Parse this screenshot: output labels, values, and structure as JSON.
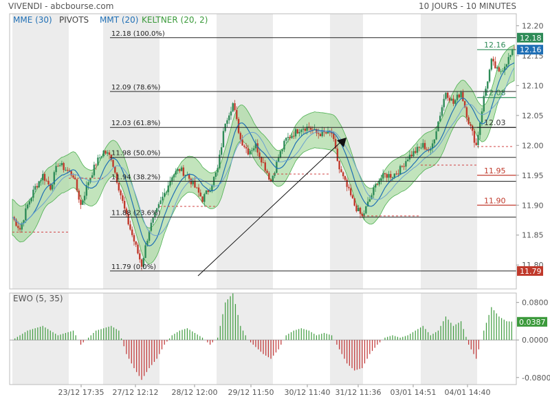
{
  "header": {
    "left": "VIVENDI - abcbourse.com",
    "right": "10 JOURS - 10 MINUTES"
  },
  "legend": [
    {
      "label": "MME (30)",
      "color": "#1f6fb5"
    },
    {
      "label": "PIVOTS",
      "color": "#444444"
    },
    {
      "label": "MMT (20)",
      "color": "#1f6fb5"
    },
    {
      "label": "KELTNER (20, 2)",
      "color": "#3a9a3a"
    }
  ],
  "ewo_label": "EWO (5, 35)",
  "colors": {
    "up_candle": "#2e8b57",
    "down_candle": "#c0392b",
    "keltner_fill": "#a8d8a0",
    "keltner_line": "#4caf50",
    "ma_line": "#1f6fb5",
    "pivot_dash": "#d04040",
    "shade": "#ececec",
    "ewo_pos": "#3c9a3c",
    "ewo_neg": "#c03030"
  },
  "chart_data": [
    {
      "type": "candlestick",
      "ylim": [
        11.76,
        12.22
      ],
      "yticks": [
        "12.20",
        "12.15",
        "12.10",
        "12.05",
        "12.00",
        "11.95",
        "11.90",
        "11.85",
        "11.80"
      ],
      "xticks": [
        "23/12 17:35",
        "27/12 12:12",
        "28/12 12:00",
        "29/12 11:50",
        "30/12 11:40",
        "31/12 11:36",
        "03/01 14:51",
        "04/01 14:40"
      ],
      "fibonacci": [
        {
          "price": 12.18,
          "label": "12.18",
          "pct": "(100.0%)"
        },
        {
          "price": 12.09,
          "label": "12.09",
          "pct": "(78.6%)"
        },
        {
          "price": 12.03,
          "label": "12.03",
          "pct": "(61.8%)"
        },
        {
          "price": 11.98,
          "label": "11.98",
          "pct": "(50.0%)"
        },
        {
          "price": 11.94,
          "label": "11.94",
          "pct": "(38.2%)"
        },
        {
          "price": 11.88,
          "label": "11.88",
          "pct": "(23.6%)"
        },
        {
          "price": 11.79,
          "label": "11.79",
          "pct": "(0.0%)"
        }
      ],
      "price_badges": [
        {
          "price": 12.18,
          "label": "12.18",
          "color": "#2e8b57"
        },
        {
          "price": 12.16,
          "label": "12.16",
          "color": "#1f6fb5"
        },
        {
          "price": 11.79,
          "label": "11.79",
          "color": "#c0392b"
        }
      ],
      "pivot_levels": [
        {
          "price": 12.16,
          "label": "12.16",
          "color": "#2e8b57"
        },
        {
          "price": 12.08,
          "label": "12.08",
          "color": "#2e8b57"
        },
        {
          "price": 12.03,
          "label": "12.03",
          "color": "#333333"
        },
        {
          "price": 11.95,
          "label": "11.95",
          "color": "#c0392b"
        },
        {
          "price": 11.9,
          "label": "11.90",
          "color": "#c0392b"
        }
      ],
      "close_path": [
        [
          0,
          11.88
        ],
        [
          1,
          11.86
        ],
        [
          2,
          11.9
        ],
        [
          3,
          11.93
        ],
        [
          4,
          11.95
        ],
        [
          5,
          11.93
        ],
        [
          6,
          11.97
        ],
        [
          7,
          11.96
        ],
        [
          8,
          11.95
        ],
        [
          9,
          11.9
        ],
        [
          10,
          11.94
        ],
        [
          11,
          11.97
        ],
        [
          12,
          11.99
        ],
        [
          13,
          11.98
        ],
        [
          14,
          11.93
        ],
        [
          15,
          11.88
        ],
        [
          16,
          11.84
        ],
        [
          17,
          11.8
        ],
        [
          18,
          11.86
        ],
        [
          19,
          11.89
        ],
        [
          20,
          11.92
        ],
        [
          21,
          11.95
        ],
        [
          22,
          11.96
        ],
        [
          23,
          11.95
        ],
        [
          24,
          11.93
        ],
        [
          25,
          11.91
        ],
        [
          26,
          11.93
        ],
        [
          27,
          11.96
        ],
        [
          28,
          12.04
        ],
        [
          29,
          12.07
        ],
        [
          30,
          12.01
        ],
        [
          31,
          11.99
        ],
        [
          32,
          12.0
        ],
        [
          33,
          11.97
        ],
        [
          34,
          11.94
        ],
        [
          35,
          11.98
        ],
        [
          36,
          12.01
        ],
        [
          37,
          12.02
        ],
        [
          38,
          12.03
        ],
        [
          39,
          12.03
        ],
        [
          40,
          12.02
        ],
        [
          41,
          12.02
        ],
        [
          42,
          12.02
        ],
        [
          43,
          11.96
        ],
        [
          44,
          11.93
        ],
        [
          45,
          11.9
        ],
        [
          46,
          11.88
        ],
        [
          47,
          11.91
        ],
        [
          48,
          11.94
        ],
        [
          49,
          11.95
        ],
        [
          50,
          11.95
        ],
        [
          51,
          11.96
        ],
        [
          52,
          11.98
        ],
        [
          53,
          11.99
        ],
        [
          54,
          12.0
        ],
        [
          55,
          11.99
        ],
        [
          56,
          12.04
        ],
        [
          57,
          12.09
        ],
        [
          58,
          12.07
        ],
        [
          59,
          12.09
        ],
        [
          60,
          12.04
        ],
        [
          61,
          12.0
        ],
        [
          62,
          12.08
        ],
        [
          63,
          12.14
        ],
        [
          64,
          12.12
        ],
        [
          65,
          12.14
        ],
        [
          66,
          12.16
        ]
      ]
    },
    {
      "type": "bar",
      "title": "EWO (5, 35)",
      "ylim": [
        -0.095,
        0.1
      ],
      "yticks": [
        "0.0800",
        "0.0000",
        "-0.0800"
      ],
      "last_value": "0.0387",
      "values": [
        0.0,
        0.01,
        0.02,
        0.025,
        0.03,
        0.02,
        0.01,
        0.015,
        0.02,
        -0.01,
        0.005,
        0.02,
        0.025,
        0.03,
        0.02,
        -0.03,
        -0.06,
        -0.085,
        -0.06,
        -0.04,
        -0.01,
        0.01,
        0.02,
        0.025,
        0.015,
        0.005,
        -0.01,
        0.005,
        0.08,
        0.1,
        0.03,
        0.0,
        -0.015,
        -0.03,
        -0.04,
        -0.02,
        0.01,
        0.02,
        0.025,
        0.02,
        0.01,
        0.015,
        0.01,
        -0.02,
        -0.05,
        -0.065,
        -0.06,
        -0.03,
        -0.01,
        0.005,
        0.01,
        0.005,
        0.01,
        0.02,
        0.03,
        0.01,
        0.02,
        0.05,
        0.03,
        0.04,
        -0.01,
        -0.04,
        0.02,
        0.07,
        0.05,
        0.04,
        0.0387
      ]
    }
  ]
}
